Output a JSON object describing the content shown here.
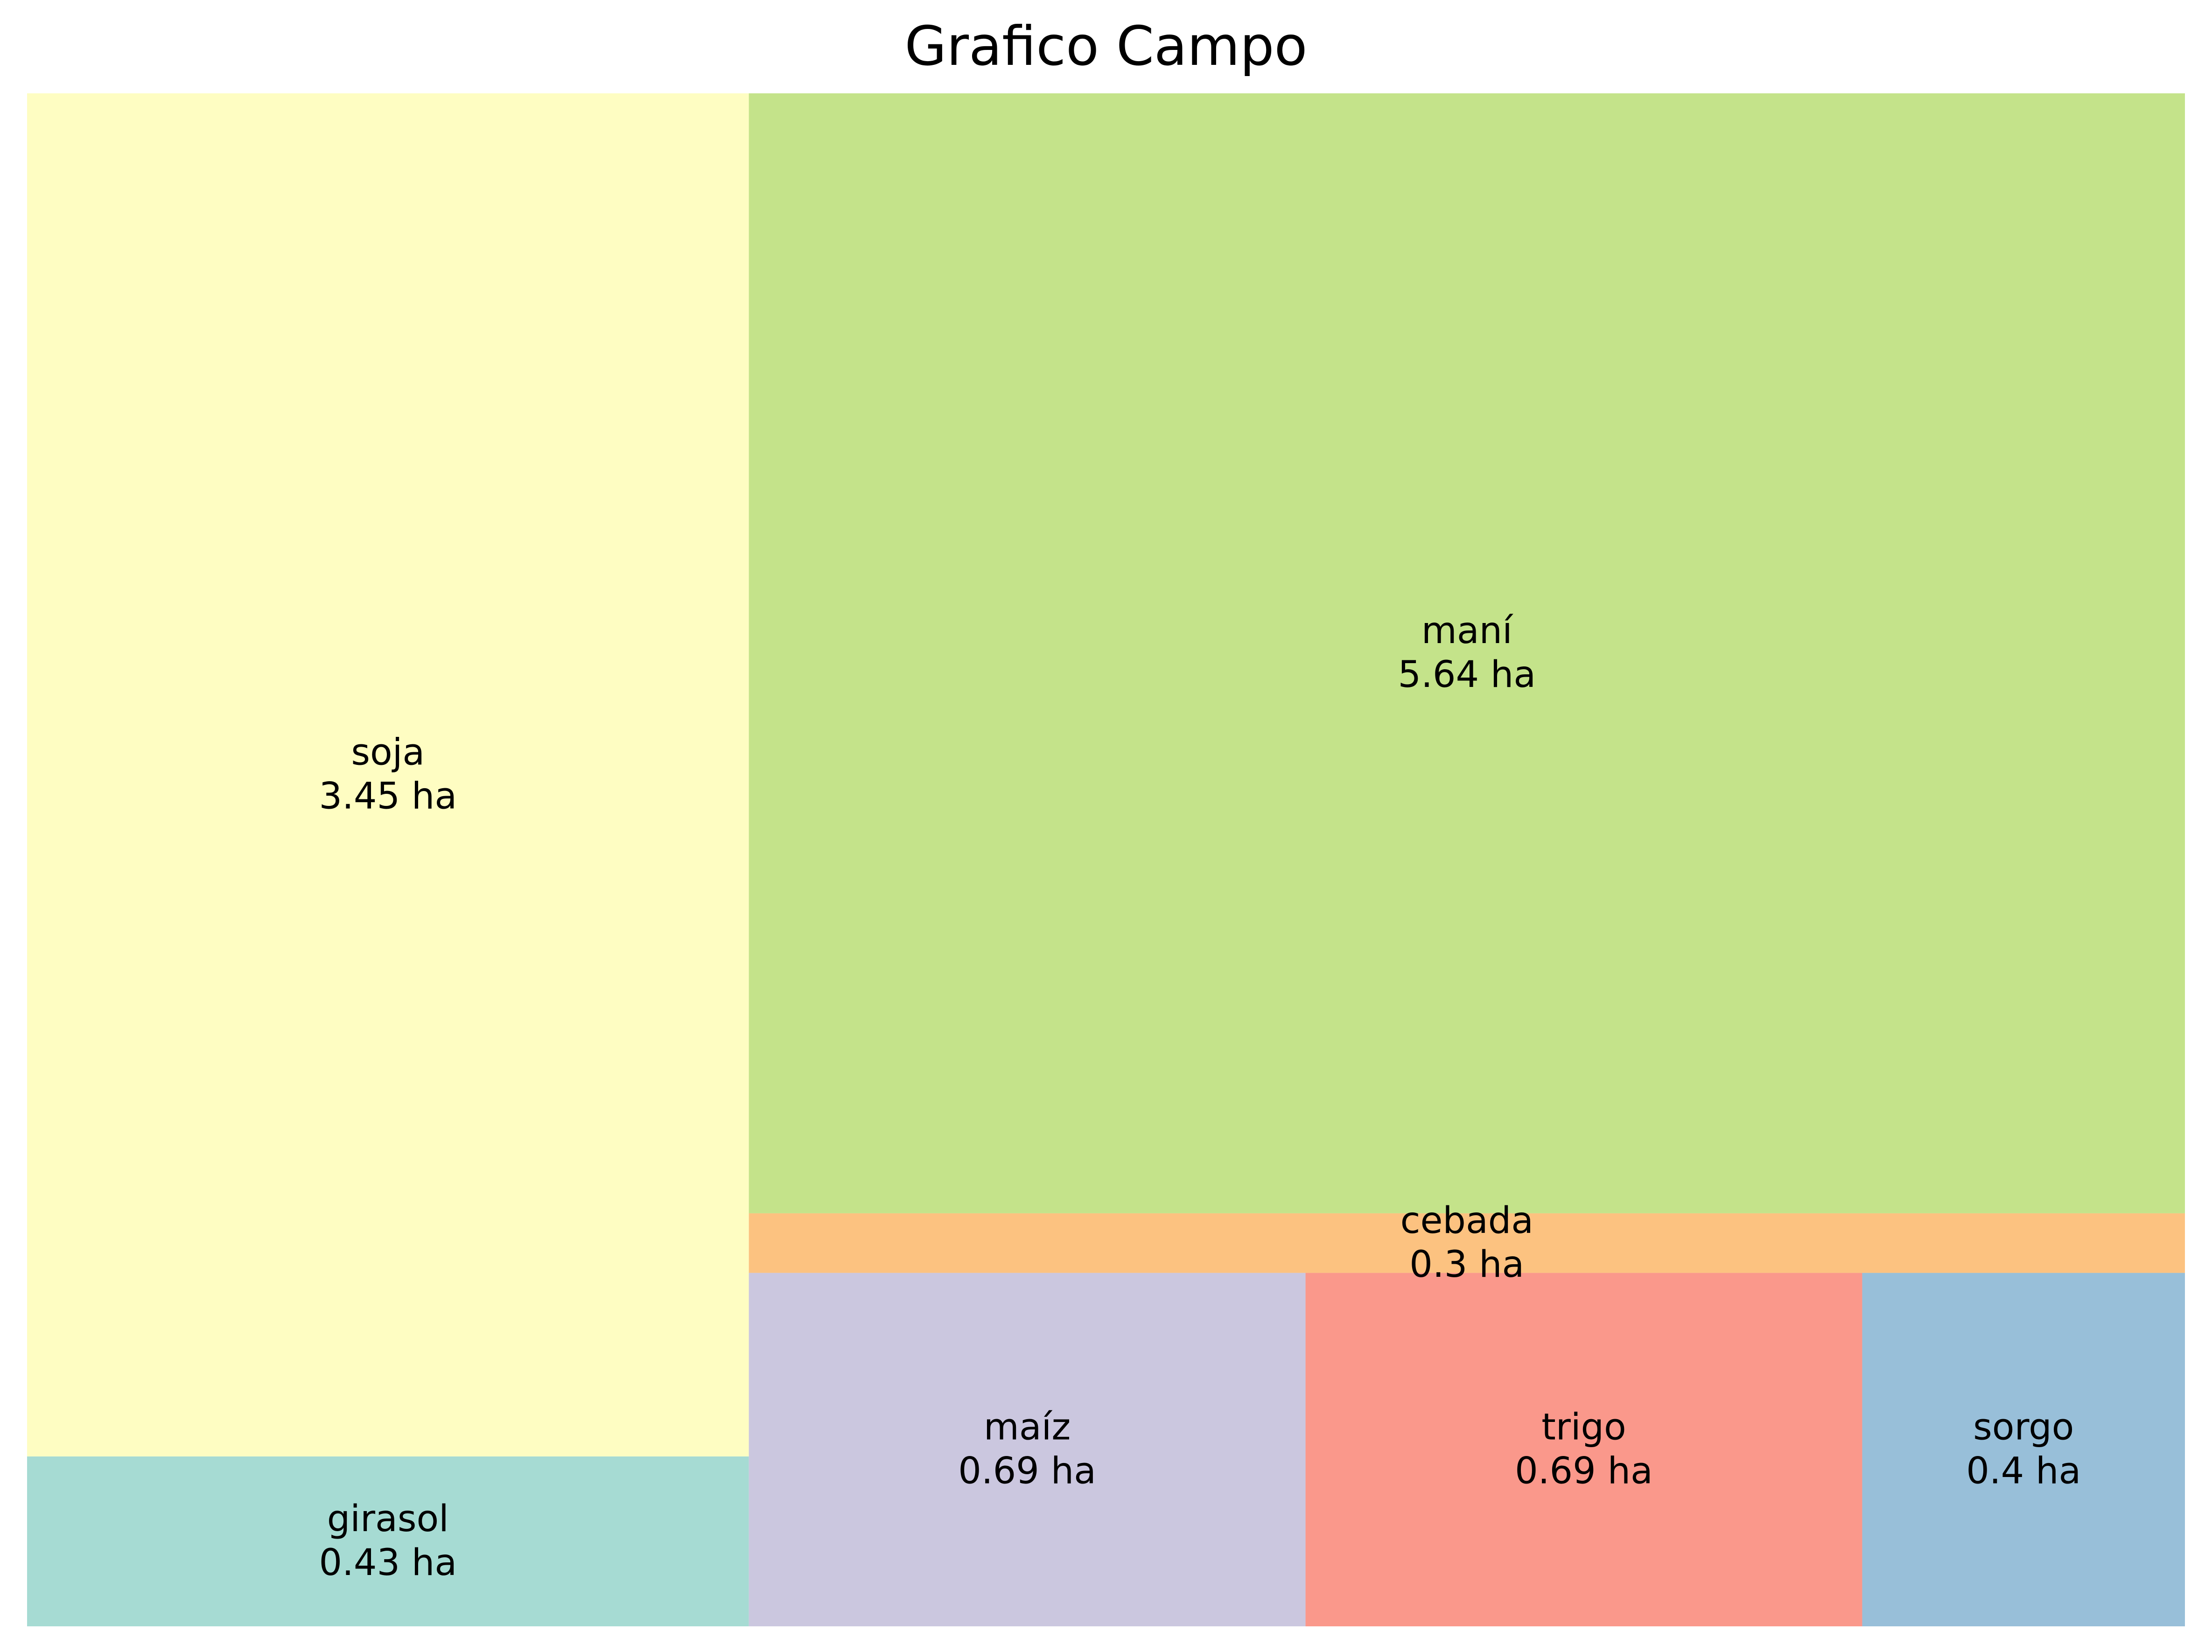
{
  "chart_data": {
    "type": "treemap",
    "title": "Grafico Campo",
    "unit": "ha",
    "items": [
      {
        "label": "girasol",
        "value": 0.43,
        "value_text": "0.43 ha",
        "color": "#a6dbd3"
      },
      {
        "label": "soja",
        "value": 3.45,
        "value_text": "3.45 ha",
        "color": "#fefdc2"
      },
      {
        "label": "maíz",
        "value": 0.69,
        "value_text": "0.69 ha",
        "color": "#cbc7df"
      },
      {
        "label": "trigo",
        "value": 0.69,
        "value_text": "0.69 ha",
        "color": "#fa988b"
      },
      {
        "label": "sorgo",
        "value": 0.4,
        "value_text": "0.4 ha",
        "color": "#98bfd9"
      },
      {
        "label": "cebada",
        "value": 0.3,
        "value_text": "0.3 ha",
        "color": "#fcc280"
      },
      {
        "label": "maní",
        "value": 5.64,
        "value_text": "5.64 ha",
        "color": "#c4e38a"
      }
    ]
  }
}
